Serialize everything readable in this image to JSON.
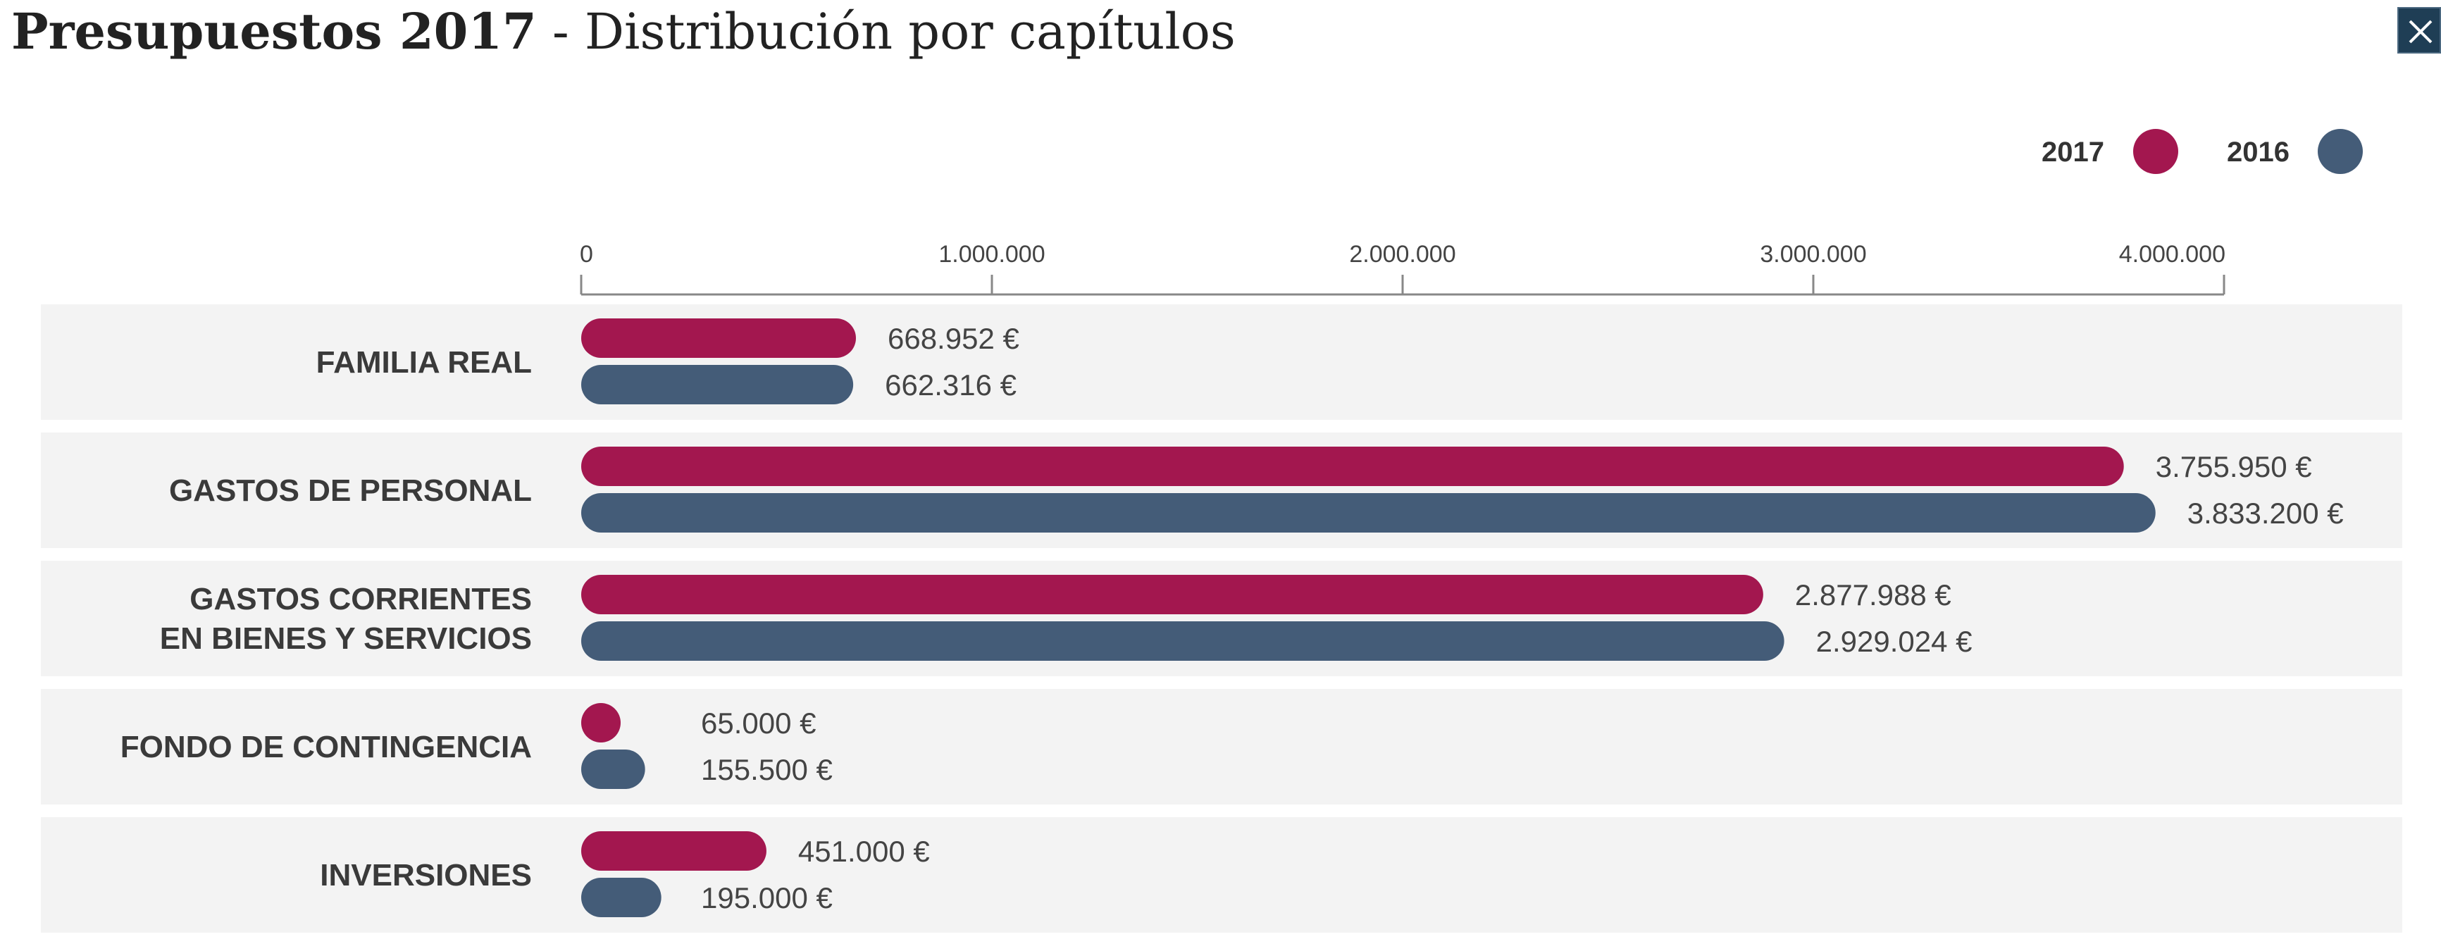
{
  "header": {
    "title_bold": "Presupuestos 2017",
    "title_rest": " - Distribución por capítulos"
  },
  "close_icon": "close-icon",
  "legend": [
    {
      "label": "2017",
      "color": "#a3174f"
    },
    {
      "label": "2016",
      "color": "#445c78"
    }
  ],
  "chart_data": {
    "type": "bar",
    "orientation": "horizontal",
    "title": "Presupuestos 2017 - Distribución por capítulos",
    "xlabel": "",
    "ylabel": "",
    "xlim": [
      0,
      4000000
    ],
    "x_ticks": [
      0,
      1000000,
      2000000,
      3000000,
      4000000
    ],
    "x_tick_labels": [
      "0",
      "1.000.000",
      "2.000.000",
      "3.000.000",
      "4.000.000"
    ],
    "legend_position": "top-right",
    "grid": false,
    "categories": [
      [
        "FAMILIA REAL"
      ],
      [
        "GASTOS DE PERSONAL"
      ],
      [
        "GASTOS CORRIENTES",
        "EN BIENES Y SERVICIOS"
      ],
      [
        "FONDO DE CONTINGENCIA"
      ],
      [
        "INVERSIONES"
      ]
    ],
    "series": [
      {
        "name": "2017",
        "color": "#a3174f",
        "values": [
          668952,
          3755950,
          2877988,
          65000,
          451000
        ],
        "labels": [
          "668.952 €",
          "3.755.950 €",
          "2.877.988 €",
          "65.000 €",
          "451.000 €"
        ]
      },
      {
        "name": "2016",
        "color": "#445c78",
        "values": [
          662316,
          3833200,
          2929024,
          155500,
          195000
        ],
        "labels": [
          "662.316 €",
          "3.833.200 €",
          "2.929.024 €",
          "155.500 €",
          "195.000 €"
        ]
      }
    ]
  }
}
